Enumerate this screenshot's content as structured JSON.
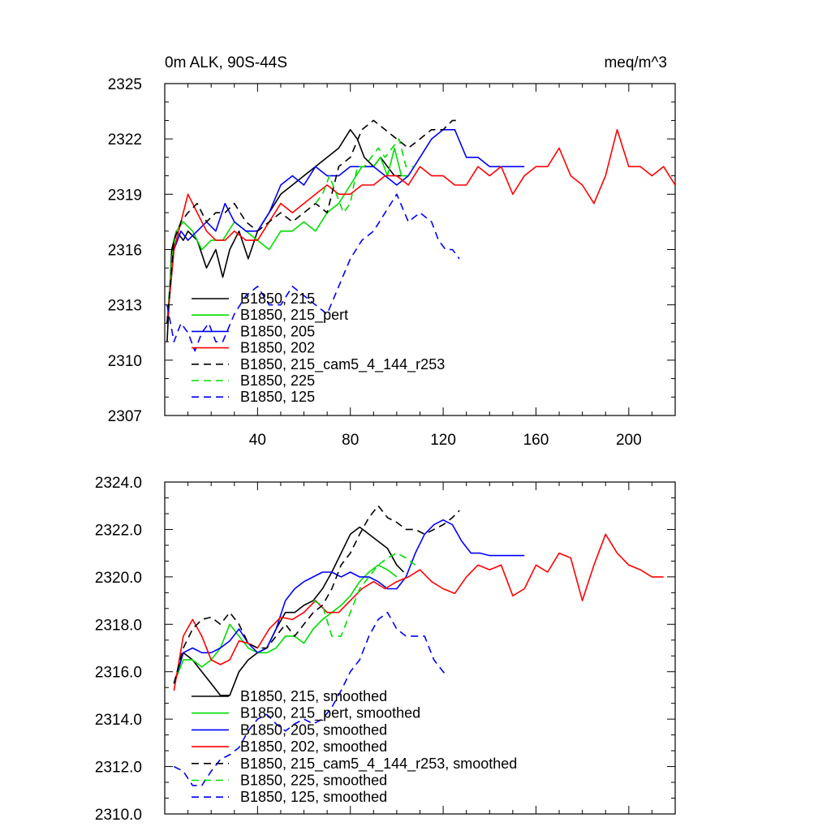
{
  "chart_data": [
    {
      "type": "line",
      "title": "0m ALK, 90S-44S",
      "units": "meq/m^3",
      "xlabel": "",
      "ylabel": "",
      "xlim": [
        0,
        220
      ],
      "ylim": [
        2307,
        2325
      ],
      "xticks": [
        40,
        80,
        120,
        160,
        200
      ],
      "xtick_labels": [
        "40",
        "80",
        "120",
        "160",
        "200"
      ],
      "yticks": [
        2307,
        2310,
        2313,
        2316,
        2319,
        2322,
        2325
      ],
      "ytick_labels": [
        "2307",
        "2310",
        "2313",
        "2316",
        "2319",
        "2322",
        "2325"
      ],
      "grid": false,
      "legend_position": "bottom-left",
      "series": [
        {
          "name": "B1850, 215",
          "color": "#000000",
          "dash": "solid",
          "x": [
            1,
            3,
            5,
            8,
            10,
            14,
            18,
            22,
            25,
            28,
            32,
            36,
            40,
            45,
            50,
            55,
            60,
            65,
            70,
            75,
            80,
            83,
            86,
            90,
            93,
            96,
            99,
            102
          ],
          "y": [
            2311,
            2316,
            2317,
            2316.5,
            2317,
            2316.5,
            2315,
            2316,
            2314.5,
            2316,
            2317,
            2315.5,
            2317,
            2318,
            2319,
            2319.5,
            2320,
            2320.5,
            2321,
            2321.5,
            2322.5,
            2322,
            2321,
            2320.5,
            2321,
            2320.5,
            2320,
            2320
          ]
        },
        {
          "name": "B1850, 215_pert",
          "color": "#00dd00",
          "dash": "solid",
          "x": [
            1,
            3,
            5,
            8,
            12,
            16,
            20,
            25,
            30,
            35,
            40,
            45,
            50,
            55,
            60,
            65,
            70,
            75,
            80,
            85,
            90,
            93,
            96,
            99,
            102,
            105
          ],
          "y": [
            2312,
            2315.5,
            2317,
            2317.5,
            2317,
            2316,
            2316.5,
            2316.5,
            2317.5,
            2317,
            2316.5,
            2316,
            2317,
            2317,
            2317.5,
            2317,
            2318,
            2318.5,
            2319.5,
            2320.5,
            2320.5,
            2321,
            2320,
            2321.5,
            2320,
            2320
          ]
        },
        {
          "name": "B1850, 205",
          "color": "#0000ff",
          "dash": "solid",
          "x": [
            1,
            4,
            7,
            10,
            14,
            18,
            22,
            26,
            30,
            35,
            40,
            45,
            50,
            55,
            60,
            65,
            70,
            75,
            80,
            85,
            90,
            95,
            100,
            105,
            110,
            115,
            120,
            125,
            130,
            135,
            140,
            145,
            150,
            155
          ],
          "y": [
            2312,
            2316,
            2317,
            2316.5,
            2317,
            2317.5,
            2317,
            2318.5,
            2317.5,
            2317,
            2317,
            2318,
            2319.5,
            2320,
            2319.5,
            2320.5,
            2320,
            2320,
            2320.5,
            2320.5,
            2320.5,
            2320,
            2319.5,
            2320,
            2321,
            2322,
            2322.5,
            2322.5,
            2321,
            2321,
            2320.5,
            2320.5,
            2320.5,
            2320.5
          ]
        },
        {
          "name": "B1850, 202",
          "color": "#ff0000",
          "dash": "solid",
          "x": [
            1,
            4,
            7,
            10,
            14,
            18,
            22,
            26,
            30,
            35,
            40,
            45,
            50,
            55,
            60,
            65,
            70,
            75,
            80,
            85,
            90,
            95,
            100,
            105,
            110,
            115,
            120,
            125,
            130,
            135,
            140,
            145,
            150,
            155,
            160,
            165,
            170,
            175,
            180,
            185,
            190,
            195,
            200,
            205,
            210,
            215,
            220
          ],
          "y": [
            2312,
            2316,
            2317.5,
            2319,
            2318,
            2317,
            2316.5,
            2316.5,
            2317,
            2316.5,
            2316.5,
            2317.5,
            2318.5,
            2318,
            2318.5,
            2319,
            2319.5,
            2319,
            2319,
            2319.5,
            2319.5,
            2320,
            2320,
            2319.5,
            2320.5,
            2320,
            2320,
            2319.5,
            2319.5,
            2320.5,
            2320,
            2320.5,
            2319,
            2320,
            2320.5,
            2320.5,
            2321.5,
            2320,
            2319.5,
            2318.5,
            2320,
            2322.5,
            2320.5,
            2320.5,
            2320,
            2320.5,
            2319.5
          ]
        },
        {
          "name": "B1850, 215_cam5_4_144_r253",
          "color": "#000000",
          "dash": "dashed",
          "x": [
            1,
            4,
            7,
            10,
            14,
            18,
            22,
            26,
            30,
            35,
            40,
            45,
            50,
            55,
            60,
            65,
            70,
            75,
            80,
            85,
            90,
            95,
            100,
            105,
            110,
            115,
            120,
            124,
            127
          ],
          "y": [
            2312,
            2316.5,
            2317.5,
            2318,
            2318.5,
            2317.5,
            2318,
            2318,
            2318.5,
            2317.5,
            2317,
            2317.5,
            2318,
            2317.5,
            2318,
            2318.5,
            2318,
            2320.5,
            2321,
            2322.5,
            2323,
            2322.5,
            2322,
            2321.5,
            2322,
            2322.5,
            2322.5,
            2323,
            2323
          ]
        },
        {
          "name": "B1850, 225",
          "color": "#00dd00",
          "dash": "dashed",
          "x": [
            65,
            68,
            71,
            74,
            77,
            80,
            83,
            86,
            89,
            92,
            95,
            98,
            101,
            104,
            107
          ],
          "y": [
            2318.5,
            2319,
            2320,
            2319,
            2318,
            2318.5,
            2320.5,
            2320.5,
            2321,
            2321.5,
            2321,
            2321.5,
            2322,
            2320.5,
            2320.5
          ]
        },
        {
          "name": "B1850, 125",
          "color": "#0000ff",
          "dash": "dashed",
          "x": [
            1,
            4,
            7,
            10,
            13,
            16,
            19,
            22,
            25,
            30,
            35,
            40,
            45,
            50,
            55,
            60,
            65,
            70,
            75,
            80,
            85,
            90,
            95,
            100,
            105,
            110,
            115,
            118,
            121,
            124,
            127
          ],
          "y": [
            2313,
            2311,
            2312,
            2311.5,
            2310.5,
            2311.5,
            2312,
            2311,
            2311,
            2312.5,
            2313.5,
            2314,
            2313,
            2313,
            2314,
            2313.5,
            2313,
            2312.5,
            2314,
            2315.5,
            2316.5,
            2317,
            2318,
            2319,
            2317.5,
            2318,
            2317.5,
            2316.5,
            2316,
            2316,
            2315.5
          ]
        }
      ]
    },
    {
      "type": "line",
      "title": "",
      "xlabel": "",
      "ylabel": "",
      "xlim": [
        0,
        220
      ],
      "ylim": [
        2310,
        2324
      ],
      "xticks": [
        40,
        80,
        120,
        160,
        200
      ],
      "xtick_labels": [],
      "yticks": [
        2310,
        2312,
        2314,
        2316,
        2318,
        2320,
        2322,
        2324
      ],
      "ytick_labels": [
        "2310.0",
        "2312.0",
        "2314.0",
        "2316.0",
        "2318.0",
        "2320.0",
        "2322.0",
        "2324.0"
      ],
      "grid": false,
      "legend_position": "bottom-left",
      "series": [
        {
          "name": "B1850, 215, smoothed",
          "color": "#000000",
          "dash": "solid",
          "x": [
            4,
            8,
            12,
            16,
            20,
            24,
            28,
            32,
            36,
            40,
            44,
            48,
            52,
            56,
            60,
            64,
            68,
            72,
            76,
            80,
            84,
            88,
            92,
            96,
            100,
            103
          ],
          "y": [
            2315.5,
            2316.8,
            2316.5,
            2316,
            2315.5,
            2315,
            2315,
            2316,
            2316.5,
            2316.8,
            2317,
            2317.8,
            2318.5,
            2318.5,
            2318.8,
            2319,
            2319.5,
            2320.2,
            2321,
            2321.8,
            2322.1,
            2321.8,
            2321.5,
            2321.2,
            2320.5,
            2320.2
          ]
        },
        {
          "name": "B1850, 215_pert, smoothed",
          "color": "#00dd00",
          "dash": "solid",
          "x": [
            4,
            8,
            12,
            16,
            20,
            24,
            28,
            32,
            36,
            40,
            44,
            48,
            52,
            56,
            60,
            64,
            68,
            72,
            76,
            80,
            84,
            88,
            92,
            96,
            100
          ],
          "y": [
            2315.5,
            2316.5,
            2316.5,
            2316.2,
            2316.5,
            2317,
            2318,
            2317.5,
            2317,
            2316.8,
            2316.8,
            2317,
            2317.5,
            2317.5,
            2317.2,
            2317.8,
            2318.2,
            2318.5,
            2318.8,
            2319.2,
            2319.8,
            2320.2,
            2320.5,
            2320.3,
            2320
          ]
        },
        {
          "name": "B1850, 205, smoothed",
          "color": "#0000ff",
          "dash": "solid",
          "x": [
            4,
            8,
            12,
            16,
            20,
            24,
            28,
            32,
            36,
            40,
            44,
            48,
            52,
            56,
            60,
            64,
            68,
            72,
            76,
            80,
            84,
            88,
            92,
            96,
            100,
            104,
            108,
            112,
            116,
            120,
            124,
            128,
            132,
            136,
            140,
            145,
            150,
            155
          ],
          "y": [
            2315.5,
            2316.8,
            2317,
            2316.8,
            2316.8,
            2317,
            2317.3,
            2317.8,
            2317.2,
            2316.8,
            2317,
            2317.8,
            2319,
            2319.5,
            2319.8,
            2320,
            2320.2,
            2320.2,
            2320,
            2320.2,
            2320,
            2320,
            2319.8,
            2319.5,
            2319.5,
            2320,
            2321,
            2321.8,
            2322.2,
            2322.4,
            2322.2,
            2321.5,
            2321,
            2321,
            2320.9,
            2320.9,
            2320.9,
            2320.9
          ]
        },
        {
          "name": "B1850, 202, smoothed",
          "color": "#ff0000",
          "dash": "solid",
          "x": [
            4,
            8,
            12,
            16,
            20,
            24,
            28,
            32,
            36,
            40,
            45,
            50,
            55,
            60,
            65,
            70,
            75,
            80,
            85,
            90,
            95,
            100,
            105,
            110,
            115,
            120,
            125,
            130,
            135,
            140,
            145,
            150,
            155,
            160,
            165,
            170,
            175,
            180,
            185,
            190,
            195,
            200,
            205,
            210,
            215
          ],
          "y": [
            2315.2,
            2317.5,
            2318.2,
            2317.5,
            2316.5,
            2316.3,
            2316.5,
            2317.3,
            2317.2,
            2317,
            2317.8,
            2318.3,
            2318.2,
            2318.5,
            2319,
            2318.5,
            2318.5,
            2319,
            2319.5,
            2319.8,
            2319.5,
            2319.8,
            2320,
            2320.3,
            2319.8,
            2319.5,
            2319.3,
            2320,
            2320.5,
            2320.3,
            2320.5,
            2319.2,
            2319.5,
            2320.5,
            2320.2,
            2321,
            2320.8,
            2319,
            2320.5,
            2321.8,
            2321,
            2320.5,
            2320.3,
            2320,
            2320
          ]
        },
        {
          "name": "B1850, 215_cam5_4_144_r253, smoothed",
          "color": "#000000",
          "dash": "dashed",
          "x": [
            4,
            8,
            12,
            16,
            20,
            24,
            28,
            32,
            36,
            40,
            44,
            48,
            52,
            56,
            60,
            64,
            68,
            72,
            76,
            80,
            84,
            88,
            92,
            96,
            100,
            104,
            108,
            112,
            116,
            120,
            124,
            127
          ],
          "y": [
            2315.5,
            2317,
            2317.8,
            2318.2,
            2318.3,
            2318,
            2318.5,
            2318,
            2317.2,
            2317,
            2317,
            2317.5,
            2318,
            2317.5,
            2318,
            2318.5,
            2318.8,
            2319.5,
            2320.5,
            2321,
            2321.8,
            2322.5,
            2323,
            2322.5,
            2322.3,
            2322,
            2322,
            2321.8,
            2322,
            2322.2,
            2322.5,
            2322.8
          ]
        },
        {
          "name": "B1850, 225, smoothed",
          "color": "#00dd00",
          "dash": "dashed",
          "x": [
            64,
            68,
            72,
            76,
            80,
            84,
            88,
            92,
            96,
            100,
            104,
            108
          ],
          "y": [
            2319,
            2318.8,
            2317.5,
            2317.5,
            2318.5,
            2319.5,
            2320,
            2320.5,
            2320.8,
            2321,
            2320.8,
            2320.5
          ]
        },
        {
          "name": "B1850, 125, smoothed",
          "color": "#0000ff",
          "dash": "dashed",
          "x": [
            4,
            8,
            12,
            16,
            20,
            24,
            28,
            32,
            36,
            40,
            44,
            48,
            52,
            56,
            60,
            64,
            68,
            72,
            76,
            80,
            84,
            88,
            92,
            96,
            100,
            104,
            108,
            112,
            116,
            120,
            122
          ],
          "y": [
            2312,
            2311.8,
            2311.2,
            2311.2,
            2311.8,
            2312.3,
            2312.5,
            2312.8,
            2313.5,
            2314,
            2314.2,
            2313.8,
            2313.5,
            2313.8,
            2314,
            2313.8,
            2314,
            2314.5,
            2315.2,
            2316,
            2316.5,
            2317.5,
            2318.2,
            2318.5,
            2317.8,
            2317.5,
            2317.5,
            2317.5,
            2316.5,
            2316,
            2315.8
          ]
        }
      ]
    }
  ]
}
